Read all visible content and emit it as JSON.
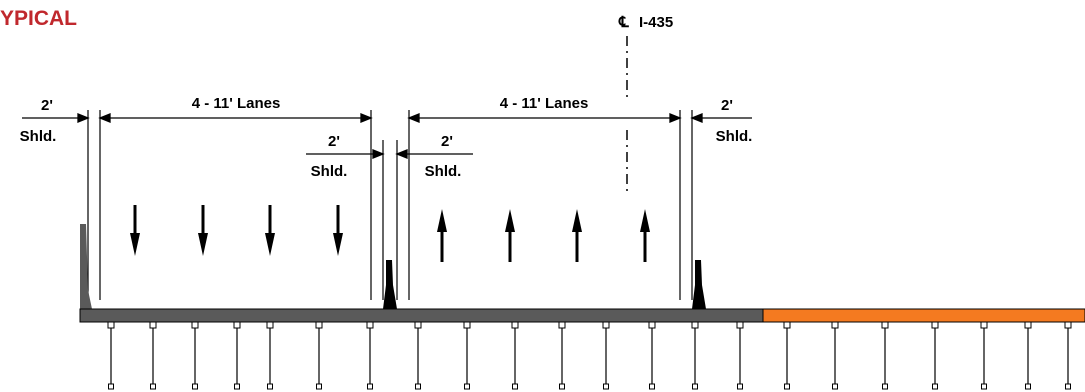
{
  "title": "YPICAL",
  "title_color": "#c0282d",
  "centerline": {
    "symbol": "CL",
    "label": "I-435"
  },
  "left_roadway": {
    "outer_shoulder": {
      "width": "2'",
      "label": "Shld."
    },
    "lanes": "4 - 11' Lanes",
    "inner_shoulder": {
      "width": "2'",
      "label": "Shld."
    },
    "traffic_direction": "down",
    "arrow_count": 4
  },
  "right_roadway": {
    "inner_shoulder": {
      "width": "2'",
      "label": "Shld."
    },
    "lanes": "4 - 11' Lanes",
    "outer_shoulder": {
      "width": "2'",
      "label": "Shld."
    },
    "traffic_direction": "up",
    "arrow_count": 4
  },
  "colors": {
    "deck_existing": "#5a5a5a",
    "deck_new": "#f47a20",
    "ink": "#000000"
  }
}
